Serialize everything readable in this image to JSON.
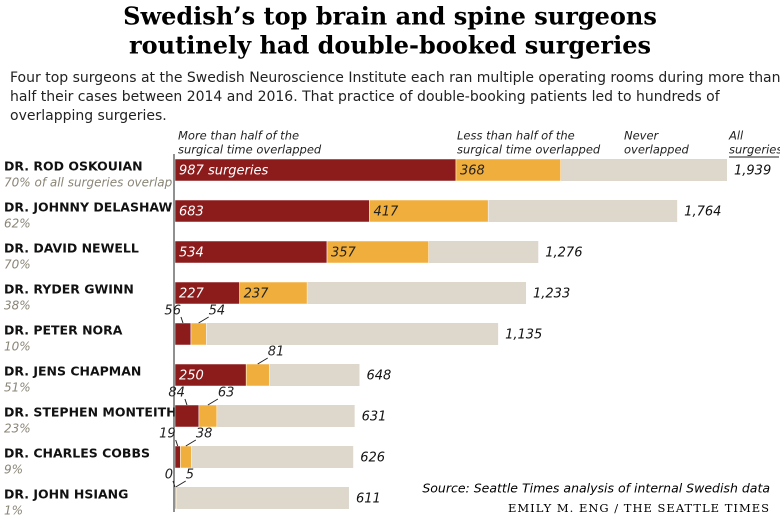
{
  "chart_data": {
    "type": "bar",
    "title": [
      "Swedish’s top brain and spine surgeons",
      "routinely had double-booked surgeries"
    ],
    "subtitle": [
      "Four top surgeons at the Swedish Neuroscience Institute each ran multiple operating rooms during more than",
      "half their cases between 2014 and 2016. That practice of double-booking patients led to hundreds of",
      "overlapping surgeries."
    ],
    "categories": [
      "DR. ROD OSKOUIAN",
      "DR. JOHNNY DELASHAW",
      "DR. DAVID NEWELL",
      "DR. RYDER GWINN",
      "DR. PETER NORA",
      "DR. JENS CHAPMAN",
      "DR. STEPHEN MONTEITH",
      "DR. CHARLES COBBS",
      "DR. JOHN HSIANG"
    ],
    "notes": [
      "70% of all surgeries overlap",
      "62%",
      "70%",
      "38%",
      "10%",
      "51%",
      "23%",
      "9%",
      "1%"
    ],
    "series": [
      {
        "name": [
          "More than half of the",
          "surgical time overlapped"
        ],
        "color": "#8c1c1c",
        "values": [
          987,
          683,
          534,
          227,
          56,
          250,
          84,
          19,
          0
        ],
        "value_labels": [
          "987 surgeries",
          "683",
          "534",
          "227",
          "56",
          "250",
          "84",
          "19",
          "0"
        ]
      },
      {
        "name": [
          "Less than half of the",
          "surgical time overlapped"
        ],
        "color": "#f0ae3c",
        "values": [
          368,
          417,
          357,
          237,
          54,
          81,
          63,
          38,
          5
        ]
      }
    ],
    "totals": {
      "name": [
        "All",
        "surgeries"
      ],
      "color": "#ddd7cc",
      "values": [
        1939,
        1764,
        1276,
        1233,
        1135,
        648,
        631,
        626,
        611
      ],
      "value_labels": [
        "1,939",
        "1,764",
        "1,276",
        "1,233",
        "1,135",
        "648",
        "631",
        "626",
        "611"
      ]
    },
    "never_label": [
      "Never",
      "overlapped"
    ],
    "source": "Source: Seattle Times analysis of internal Swedish data",
    "credit": "EMILY M. ENG / THE SEATTLE TIMES"
  }
}
